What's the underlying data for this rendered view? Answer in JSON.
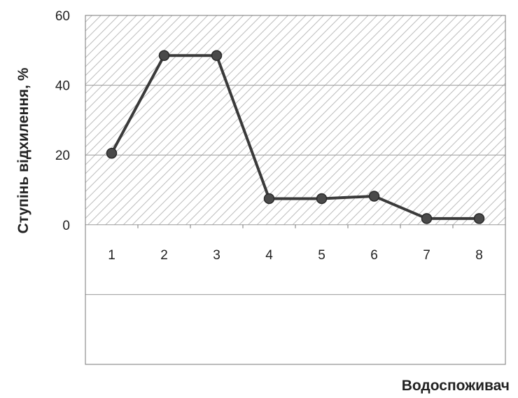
{
  "chart_data": {
    "type": "line",
    "title": "",
    "xlabel": "Водоспоживач",
    "ylabel": "Ступінь відхилення, %",
    "categories": [
      "1",
      "2",
      "3",
      "4",
      "5",
      "6",
      "7",
      "8"
    ],
    "values": [
      20.5,
      48.5,
      48.5,
      7.5,
      7.5,
      8.2,
      1.8,
      1.8
    ],
    "ylim": [
      -40,
      60
    ],
    "y_ticks": [
      "60",
      "40",
      "20",
      "0"
    ],
    "y_tick_values": [
      60,
      40,
      20,
      0
    ],
    "grid": true,
    "legend": "none",
    "colors": {
      "line": "#3a3a3a",
      "marker": "#4a4a4a",
      "grid": "#9a9a9a",
      "hatch": "#bcbcbc",
      "frame": "#777777"
    }
  }
}
